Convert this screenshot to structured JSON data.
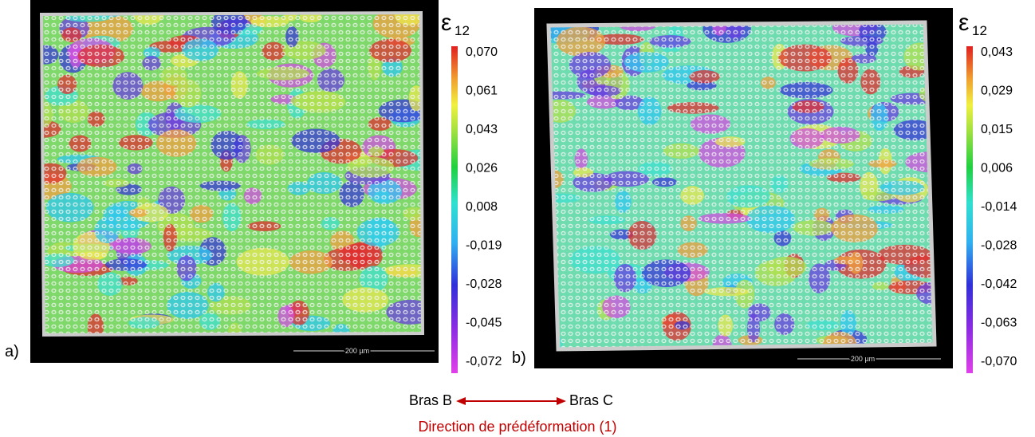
{
  "panels": [
    {
      "label": "a)",
      "scale_bar": "200 µm",
      "colorbar": {
        "symbol": "ε",
        "subscript": "12",
        "ticks": [
          "0,070",
          "0,061",
          "0,043",
          "0,026",
          "0,008",
          "-0,019",
          "-0,028",
          "-0,045",
          "-0,072"
        ]
      }
    },
    {
      "label": "b)",
      "scale_bar": "200 µm",
      "colorbar": {
        "symbol": "ε",
        "subscript": "12",
        "ticks": [
          "0,043",
          "0,029",
          "0,015",
          "0,006",
          "-0,014",
          "-0,028",
          "-0,042",
          "-0,063",
          "-0,070"
        ]
      }
    }
  ],
  "caption": {
    "left": "Bras B",
    "right": "Bras C",
    "direction": "Direction de prédéformation (1)"
  }
}
